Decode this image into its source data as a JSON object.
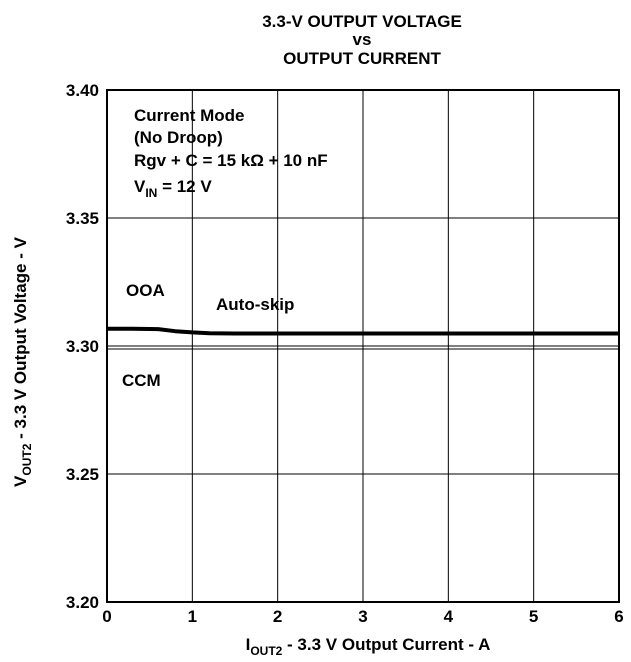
{
  "chart_data": {
    "type": "line",
    "title_lines": [
      "3.3-V OUTPUT VOLTAGE",
      "vs",
      "OUTPUT CURRENT"
    ],
    "xlabel": {
      "main": "I",
      "sub": "OUT2",
      "rest": " - 3.3 V Output Current - A"
    },
    "ylabel": {
      "main": "V",
      "sub": "OUT2",
      "rest": " - 3.3 V Output Voltage - V"
    },
    "xlim": [
      0,
      6
    ],
    "ylim": [
      3.2,
      3.4
    ],
    "x_ticks": [
      {
        "value": 0,
        "label": "0"
      },
      {
        "value": 1,
        "label": "1"
      },
      {
        "value": 2,
        "label": "2"
      },
      {
        "value": 3,
        "label": "3"
      },
      {
        "value": 4,
        "label": "4"
      },
      {
        "value": 5,
        "label": "5"
      },
      {
        "value": 6,
        "label": "6"
      }
    ],
    "y_ticks": [
      {
        "value": 3.2,
        "label": "3.20"
      },
      {
        "value": 3.25,
        "label": "3.25"
      },
      {
        "value": 3.3,
        "label": "3.30"
      },
      {
        "value": 3.35,
        "label": "3.35"
      },
      {
        "value": 3.4,
        "label": "3.40"
      }
    ],
    "grid": true,
    "conditions": {
      "line1": "Current Mode",
      "line2": "(No Droop)",
      "line3": "Rgv + C = 15 kΩ + 10 nF",
      "line4_main": "V",
      "line4_sub": "IN",
      "line4_rest": " = 12 V"
    },
    "annotations": {
      "ooa": "OOA",
      "auto_skip": "Auto-skip",
      "ccm": "CCM"
    },
    "series": [
      {
        "x": [
          0,
          0.3,
          0.6,
          0.8,
          1.0,
          1.2,
          1.5,
          2,
          3,
          4,
          5,
          6
        ],
        "y": [
          3.3067,
          3.3067,
          3.3066,
          3.3058,
          3.3053,
          3.305,
          3.3049,
          3.3049,
          3.3049,
          3.3049,
          3.3049,
          3.3049
        ]
      }
    ],
    "reference_line": {
      "y": 3.3
    }
  }
}
